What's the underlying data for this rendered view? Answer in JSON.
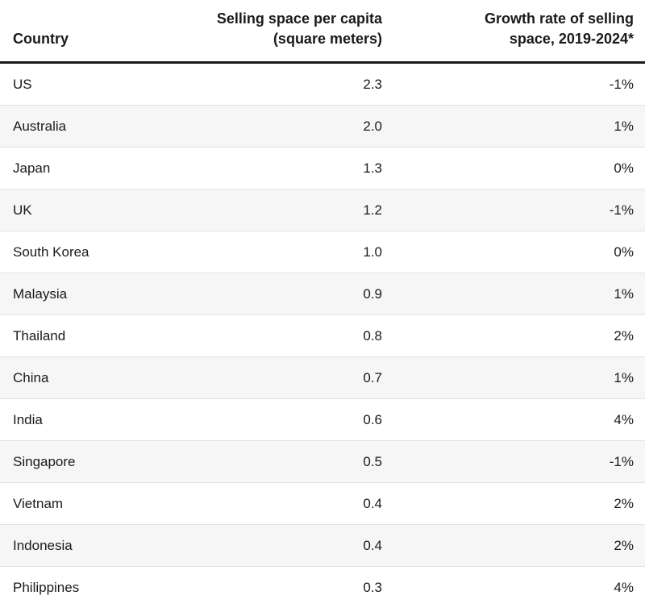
{
  "chart_data": {
    "type": "table",
    "columns": [
      [
        "Country"
      ],
      [
        "Selling space per capita",
        "(square meters)"
      ],
      [
        "Growth rate of selling",
        "space, 2019-2024*"
      ]
    ],
    "rows": [
      {
        "country": "US",
        "space": "2.3",
        "growth": "-1%"
      },
      {
        "country": "Australia",
        "space": "2.0",
        "growth": "1%"
      },
      {
        "country": "Japan",
        "space": "1.3",
        "growth": "0%"
      },
      {
        "country": "UK",
        "space": "1.2",
        "growth": "-1%"
      },
      {
        "country": "South Korea",
        "space": "1.0",
        "growth": "0%"
      },
      {
        "country": "Malaysia",
        "space": "0.9",
        "growth": "1%"
      },
      {
        "country": "Thailand",
        "space": "0.8",
        "growth": "2%"
      },
      {
        "country": "China",
        "space": "0.7",
        "growth": "1%"
      },
      {
        "country": "India",
        "space": "0.6",
        "growth": "4%"
      },
      {
        "country": "Singapore",
        "space": "0.5",
        "growth": "-1%"
      },
      {
        "country": "Vietnam",
        "space": "0.4",
        "growth": "2%"
      },
      {
        "country": "Indonesia",
        "space": "0.4",
        "growth": "2%"
      },
      {
        "country": "Philippines",
        "space": "0.3",
        "growth": "4%"
      }
    ]
  },
  "colors": {
    "header_rule": "#1a1a1a",
    "stripe": "#f6f6f6",
    "row_divider": "#e2e2e2",
    "text": "#1a1a1a"
  }
}
